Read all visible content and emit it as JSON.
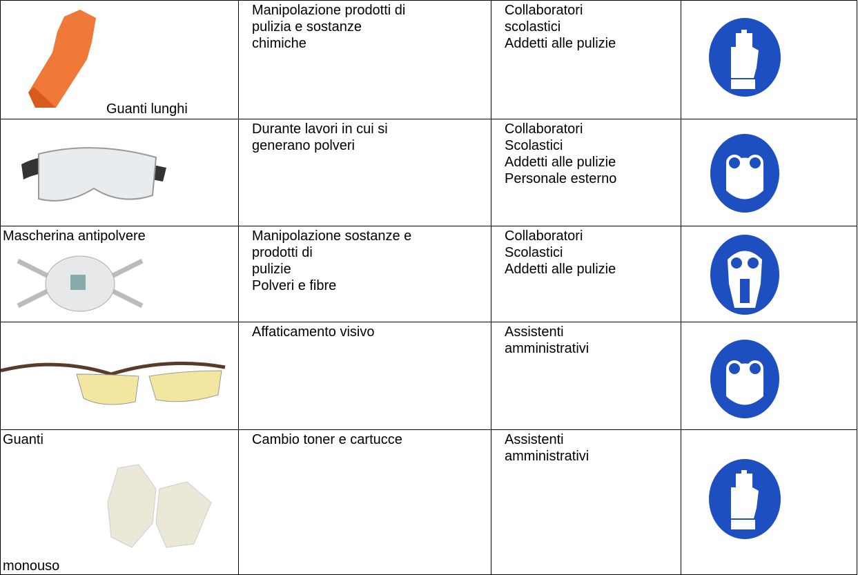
{
  "table": {
    "rows": [
      {
        "label_bottom": "Guanti lunghi",
        "uso": [
          "Manipolazione prodotti di",
          "pulizia e sostanze",
          "chimiche"
        ],
        "lavoratori": [
          "Collaboratori",
          "scolastici",
          "Addetti alle pulizie"
        ]
      },
      {
        "uso": [
          "Durante lavori in cui si",
          "generano polveri"
        ],
        "lavoratori": [
          "Collaboratori",
          "Scolastici",
          "Addetti alle pulizie",
          "Personale esterno"
        ]
      },
      {
        "label_top": "Mascherina antipolvere",
        "uso": [
          "Manipolazione sostanze e",
          "prodotti di",
          "pulizie",
          "Polveri e fibre"
        ],
        "lavoratori": [
          "Collaboratori",
          "Scolastici",
          "Addetti alle pulizie"
        ]
      },
      {
        "uso": [
          "Affaticamento visivo"
        ],
        "lavoratori": [
          "Assistenti",
          "amministrativi"
        ]
      },
      {
        "label_top": "Guanti",
        "label_bottom": "monouso",
        "uso": [
          "Cambio toner e cartucce"
        ],
        "lavoratori": [
          "Assistenti",
          "amministrativi"
        ]
      }
    ]
  }
}
